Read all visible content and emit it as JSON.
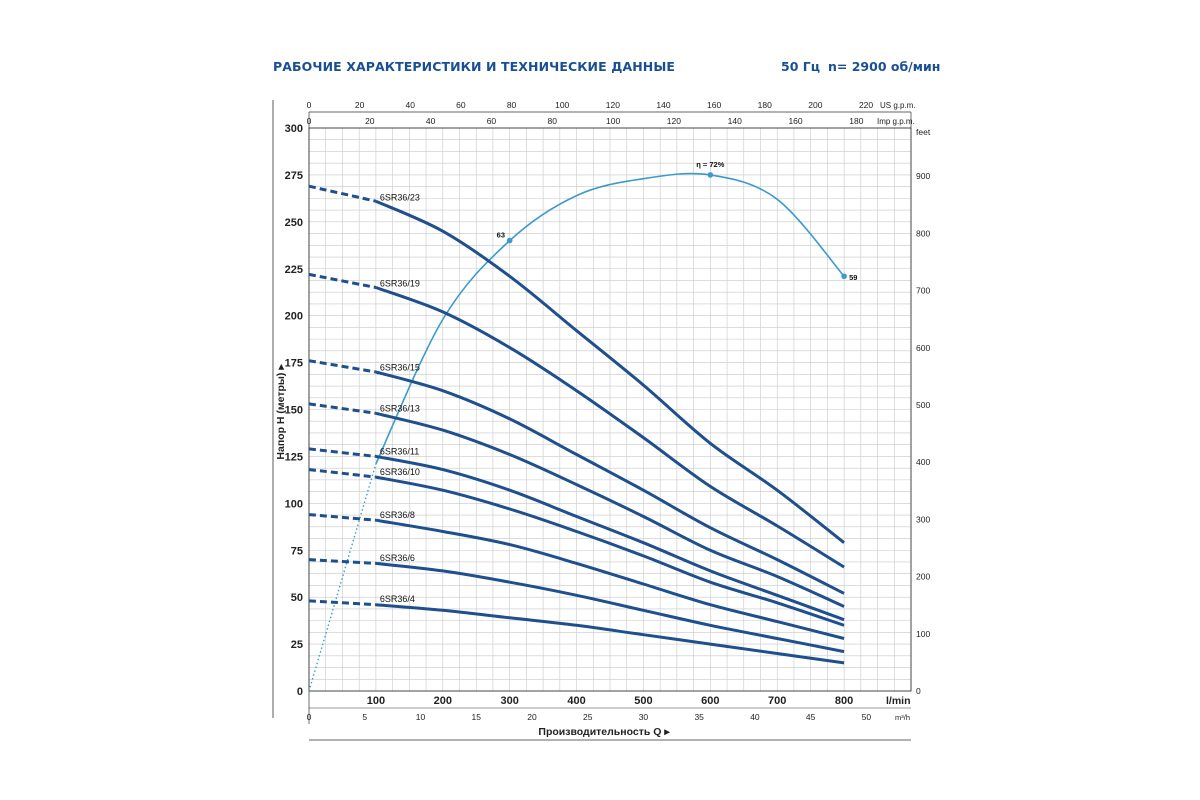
{
  "header": {
    "title": "РАБОЧИЕ ХАРАКТЕРИСТИКИ И ТЕХНИЧЕСКИЕ ДАННЫЕ",
    "frequency": "50 Гц",
    "speed": "n= 2900 об/мин"
  },
  "colors": {
    "pump_curve": "#1f4f8c",
    "efficiency_curve": "#3d9acb",
    "grid": "#c8c8c8",
    "axis_text": "#222222"
  },
  "chart_data": {
    "type": "line",
    "ylabel": "Напор H (метры)",
    "xlabel": "Производительность Q",
    "x_unit": "l/min",
    "y2_unit": "feet",
    "top_axis1_unit": "US g.p.m.",
    "top_axis2_unit": "Imp g.p.m.",
    "bottom_axis2_unit": "m³/h",
    "xlim": [
      0,
      900
    ],
    "ylim": [
      0,
      300
    ],
    "x_ticks": [
      0,
      100,
      200,
      300,
      400,
      500,
      600,
      700,
      800
    ],
    "y_ticks": [
      0,
      25,
      50,
      75,
      100,
      125,
      150,
      175,
      200,
      225,
      250,
      275,
      300
    ],
    "y2_ticks": [
      0,
      100,
      200,
      300,
      400,
      500,
      600,
      700,
      800,
      900
    ],
    "usgpm_ticks": [
      0,
      20,
      40,
      60,
      80,
      100,
      120,
      140,
      160,
      180,
      200,
      220
    ],
    "impgpm_ticks": [
      0,
      20,
      40,
      60,
      80,
      100,
      120,
      140,
      160,
      180
    ],
    "m3h_ticks": [
      0,
      5,
      10,
      15,
      20,
      25,
      30,
      35,
      40,
      45,
      50
    ],
    "grid": true,
    "dashed_until_x": 100,
    "series": [
      {
        "name": "6SR36/23",
        "x": [
          0,
          100,
          200,
          300,
          400,
          500,
          600,
          700,
          800
        ],
        "y": [
          269,
          261,
          245,
          221,
          192,
          163,
          132,
          107,
          79
        ]
      },
      {
        "name": "6SR36/19",
        "x": [
          0,
          100,
          200,
          300,
          400,
          500,
          600,
          700,
          800
        ],
        "y": [
          222,
          215,
          202,
          183,
          160,
          135,
          109,
          88,
          66
        ]
      },
      {
        "name": "6SR36/15",
        "x": [
          0,
          100,
          200,
          300,
          400,
          500,
          600,
          700,
          800
        ],
        "y": [
          176,
          170,
          160,
          145,
          126,
          107,
          87,
          70,
          52
        ]
      },
      {
        "name": "6SR36/13",
        "x": [
          0,
          100,
          200,
          300,
          400,
          500,
          600,
          700,
          800
        ],
        "y": [
          153,
          148,
          139,
          126,
          110,
          93,
          75,
          61,
          45
        ]
      },
      {
        "name": "6SR36/11",
        "x": [
          0,
          100,
          200,
          300,
          400,
          500,
          600,
          700,
          800
        ],
        "y": [
          129,
          125,
          118,
          107,
          93,
          79,
          64,
          51,
          38
        ]
      },
      {
        "name": "6SR36/10",
        "x": [
          0,
          100,
          200,
          300,
          400,
          500,
          600,
          700,
          800
        ],
        "y": [
          118,
          114,
          107,
          97,
          85,
          72,
          58,
          47,
          35
        ]
      },
      {
        "name": "6SR36/8",
        "x": [
          0,
          100,
          200,
          300,
          400,
          500,
          600,
          700,
          800
        ],
        "y": [
          94,
          91,
          85,
          78,
          68,
          57,
          46,
          37,
          28
        ]
      },
      {
        "name": "6SR36/6",
        "x": [
          0,
          100,
          200,
          300,
          400,
          500,
          600,
          700,
          800
        ],
        "y": [
          70,
          68,
          64,
          58,
          51,
          43,
          35,
          28,
          21
        ]
      },
      {
        "name": "6SR36/4",
        "x": [
          0,
          100,
          200,
          300,
          400,
          500,
          600,
          700,
          800
        ],
        "y": [
          48,
          46,
          43,
          39,
          35,
          30,
          25,
          20,
          15
        ]
      }
    ],
    "efficiency": {
      "x": [
        0,
        100,
        200,
        300,
        400,
        500,
        600,
        700,
        800
      ],
      "y": [
        0,
        121,
        198,
        240,
        264,
        273,
        275,
        262,
        221
      ],
      "dotted_until_x": 100,
      "points": [
        {
          "x": 300,
          "y": 240,
          "label": "63"
        },
        {
          "x": 600,
          "y": 275,
          "label": "η = 72%"
        },
        {
          "x": 800,
          "y": 221,
          "label": "59"
        }
      ]
    }
  }
}
